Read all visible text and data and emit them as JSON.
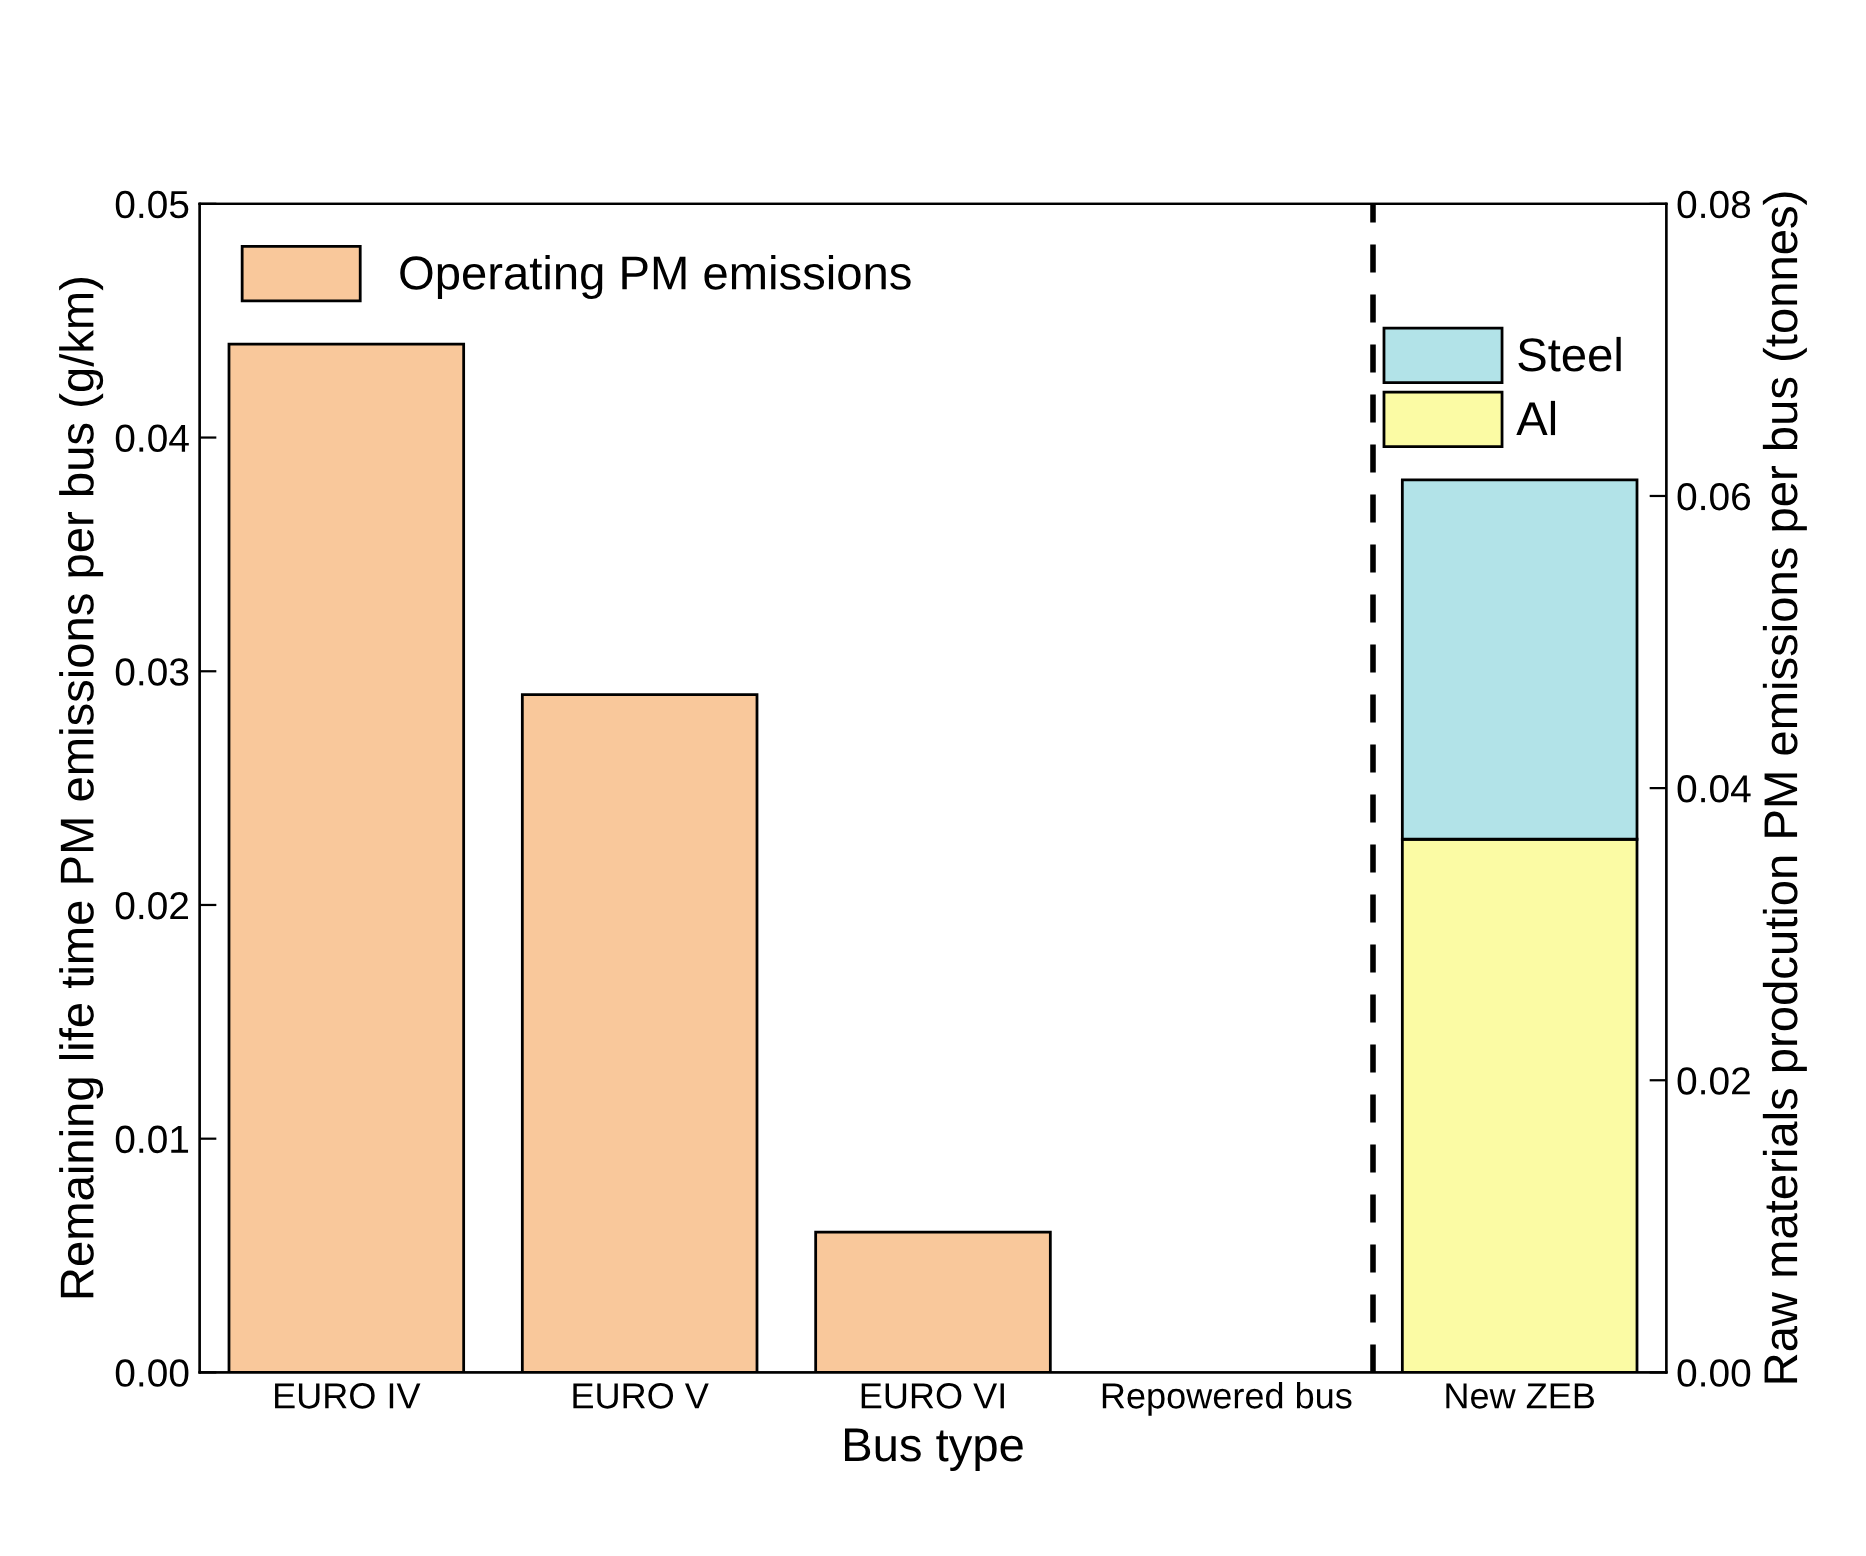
{
  "chart_data": {
    "type": "bar",
    "xlabel": "Bus type",
    "ylabel": "Remaining life time PM emissions per bus (g/km)",
    "y2label": "Raw materials prodcution PM emissions per bus (tonnes)",
    "categories": [
      "EURO IV",
      "EURO V",
      "EURO VI",
      "Repowered bus",
      "New ZEB"
    ],
    "series": [
      {
        "name": "Operating PM emissions",
        "color": "#f9c89b",
        "values": [
          0.044,
          0.029,
          0.006,
          null,
          null
        ]
      },
      {
        "name": "Al",
        "color": "#fbfba4",
        "axis": "y2",
        "values": [
          null,
          null,
          null,
          null,
          0.0365
        ]
      },
      {
        "name": "Steel",
        "color": "#b2e3e8",
        "axis": "y2",
        "values": [
          null,
          null,
          null,
          null,
          0.0246
        ]
      }
    ],
    "stacked": true,
    "ylim": [
      0,
      0.05
    ],
    "yticks": [
      {
        "value": 0,
        "label": "0.00"
      },
      0.01,
      0.02,
      0.03,
      0.04,
      0.05
    ],
    "y2lim": [
      0,
      0.08
    ],
    "y2ticks": [
      {
        "value": 0,
        "label": "0.00"
      },
      0.02,
      0.04,
      0.06,
      0.08
    ],
    "legend": "top left",
    "grid": false
  }
}
